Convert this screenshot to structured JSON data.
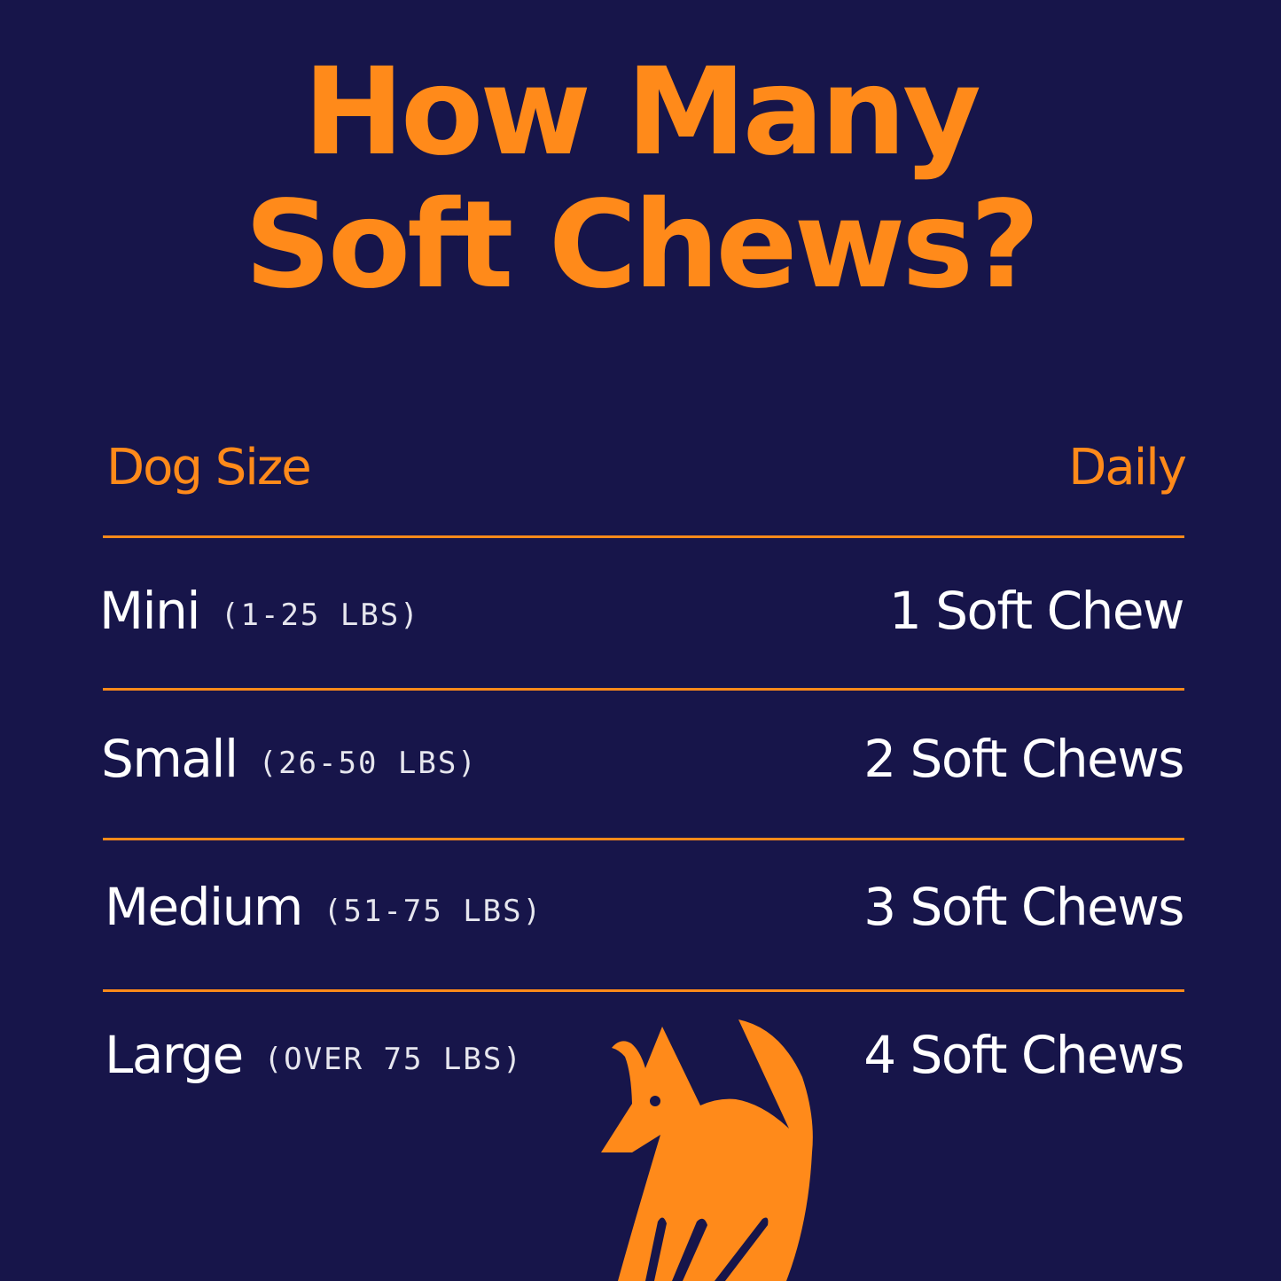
{
  "title": {
    "line1": "How Many",
    "line2": "Soft Chews?"
  },
  "table": {
    "headers": {
      "size": "Dog Size",
      "daily": "Daily"
    },
    "rows": [
      {
        "size": "Mini",
        "range": "(1-25 LBS)",
        "daily": "1 Soft Chew"
      },
      {
        "size": "Small",
        "range": "(26-50 LBS)",
        "daily": "2 Soft Chews"
      },
      {
        "size": "Medium",
        "range": "(51-75 LBS)",
        "daily": "3 Soft Chews"
      },
      {
        "size": "Large",
        "range": "(OVER 75 LBS)",
        "daily": "4 Soft Chews"
      }
    ]
  },
  "colors": {
    "background": "#17154a",
    "accent": "#ff8a1a",
    "text": "#ffffff"
  },
  "logo": {
    "icon": "fox-dog-icon"
  }
}
